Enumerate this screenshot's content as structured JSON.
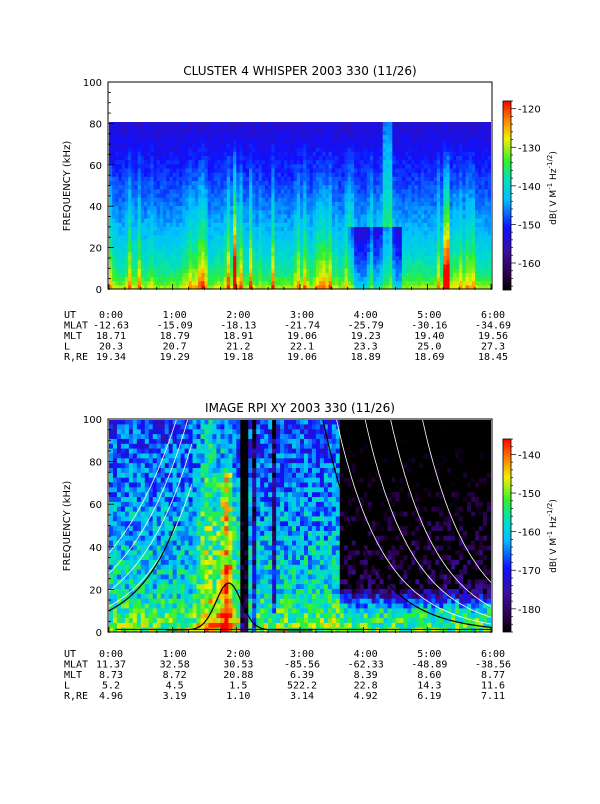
{
  "chart_data": [
    {
      "type": "heatmap",
      "title": "CLUSTER 4 WHISPER 2003 330 (11/26)",
      "xlabel": "",
      "ylabel": "FREQUENCY (kHz)",
      "ylim": [
        0,
        100
      ],
      "yticks": [
        "0",
        "20",
        "40",
        "60",
        "80",
        "100"
      ],
      "xlim": [
        "0:00",
        "6:00"
      ],
      "data_max_frequency_khz": 80,
      "colorbar": {
        "label": "dB( V M",
        "label_sup1": "-1",
        "label_mid": " Hz",
        "label_sup2": "-1/2",
        "label_end": ")",
        "range": [
          -167,
          -118
        ],
        "ticks": [
          "-120",
          "-130",
          "-140",
          "-150",
          "-160"
        ],
        "tick_values": [
          -120,
          -130,
          -140,
          -150,
          -160
        ]
      },
      "ephemeris": {
        "row_labels": [
          "UT",
          "MLAT",
          "MLT",
          "L",
          "R,RE"
        ],
        "columns": [
          [
            "0:00",
            "-12.63",
            "18.71",
            "20.3",
            "19.34"
          ],
          [
            "1:00",
            "-15.09",
            "18.79",
            "20.7",
            "19.29"
          ],
          [
            "2:00",
            "-18.13",
            "18.91",
            "21.2",
            "19.18"
          ],
          [
            "3:00",
            "-21.74",
            "19.06",
            "22.1",
            "19.06"
          ],
          [
            "4:00",
            "-25.79",
            "19.23",
            "23.3",
            "18.89"
          ],
          [
            "5:00",
            "-30.16",
            "19.40",
            "25.0",
            "18.69"
          ],
          [
            "6:00",
            "-34.69",
            "19.56",
            "27.3",
            "18.45"
          ]
        ]
      }
    },
    {
      "type": "heatmap",
      "title": "IMAGE RPI XY 2003 330 (11/26)",
      "xlabel": "",
      "ylabel": "FREQUENCY (kHz)",
      "ylim": [
        0,
        100
      ],
      "yticks": [
        "0",
        "20",
        "40",
        "60",
        "80",
        "100"
      ],
      "xlim": [
        "0:00",
        "6:00"
      ],
      "colorbar": {
        "label": "dB( V M",
        "label_sup1": "-1",
        "label_mid": " Hz",
        "label_sup2": "-1/2",
        "label_end": ")",
        "range": [
          -186,
          -136
        ],
        "ticks": [
          "-140",
          "-150",
          "-160",
          "-170",
          "-180"
        ],
        "tick_values": [
          -140,
          -150,
          -160,
          -170,
          -180
        ]
      },
      "ephemeris": {
        "row_labels": [
          "UT",
          "MLAT",
          "MLT",
          "L",
          "R,RE"
        ],
        "columns": [
          [
            "0:00",
            "11.37",
            "8.73",
            "5.2",
            "4.96"
          ],
          [
            "1:00",
            "32.58",
            "8.72",
            "4.5",
            "3.19"
          ],
          [
            "2:00",
            "30.53",
            "20.88",
            "1.5",
            "1.10"
          ],
          [
            "3:00",
            "-85.56",
            "6.39",
            "522.2",
            "3.14"
          ],
          [
            "4:00",
            "-62.33",
            "8.39",
            "22.8",
            "4.92"
          ],
          [
            "5:00",
            "-48.89",
            "8.60",
            "14.3",
            "6.19"
          ],
          [
            "6:00",
            "-38.56",
            "8.77",
            "11.6",
            "7.11"
          ]
        ]
      }
    }
  ]
}
